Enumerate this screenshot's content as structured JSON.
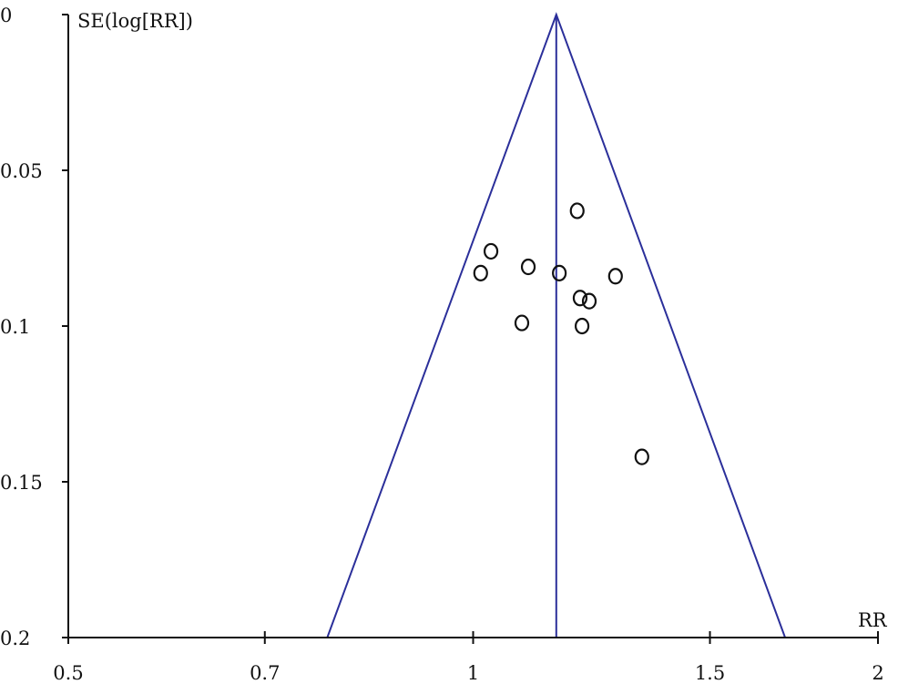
{
  "chart_data": {
    "type": "scatter",
    "subtype": "funnel plot",
    "title": "",
    "xlabel": "RR",
    "ylabel": "SE(log[RR])",
    "x_scale": "log",
    "y_reversed": true,
    "xlim": [
      0.5,
      2
    ],
    "ylim": [
      0,
      0.2
    ],
    "x_ticks": [
      0.5,
      0.7,
      1,
      1.5,
      2
    ],
    "x_tick_labels": [
      "0.5",
      "0.7",
      "1",
      "1.5",
      "2"
    ],
    "y_ticks": [
      0,
      0.05,
      0.1,
      0.15,
      0.2
    ],
    "y_tick_labels": [
      "0",
      "0.05",
      "0.1",
      "0.15",
      "0.2"
    ],
    "grid": false,
    "pooled_rr": 1.153,
    "funnel_limits_at_se_0.2": [
      0.779,
      1.706
    ],
    "funnel_color": "#2b2f9a",
    "marker": "open circle",
    "points": [
      {
        "rr": 1.195,
        "se": 0.063
      },
      {
        "rr": 1.031,
        "se": 0.076
      },
      {
        "rr": 1.013,
        "se": 0.083
      },
      {
        "rr": 1.099,
        "se": 0.081
      },
      {
        "rr": 1.159,
        "se": 0.083
      },
      {
        "rr": 1.276,
        "se": 0.084
      },
      {
        "rr": 1.201,
        "se": 0.091
      },
      {
        "rr": 1.22,
        "se": 0.092
      },
      {
        "rr": 1.087,
        "se": 0.099
      },
      {
        "rr": 1.205,
        "se": 0.1
      },
      {
        "rr": 1.335,
        "se": 0.142
      }
    ]
  }
}
